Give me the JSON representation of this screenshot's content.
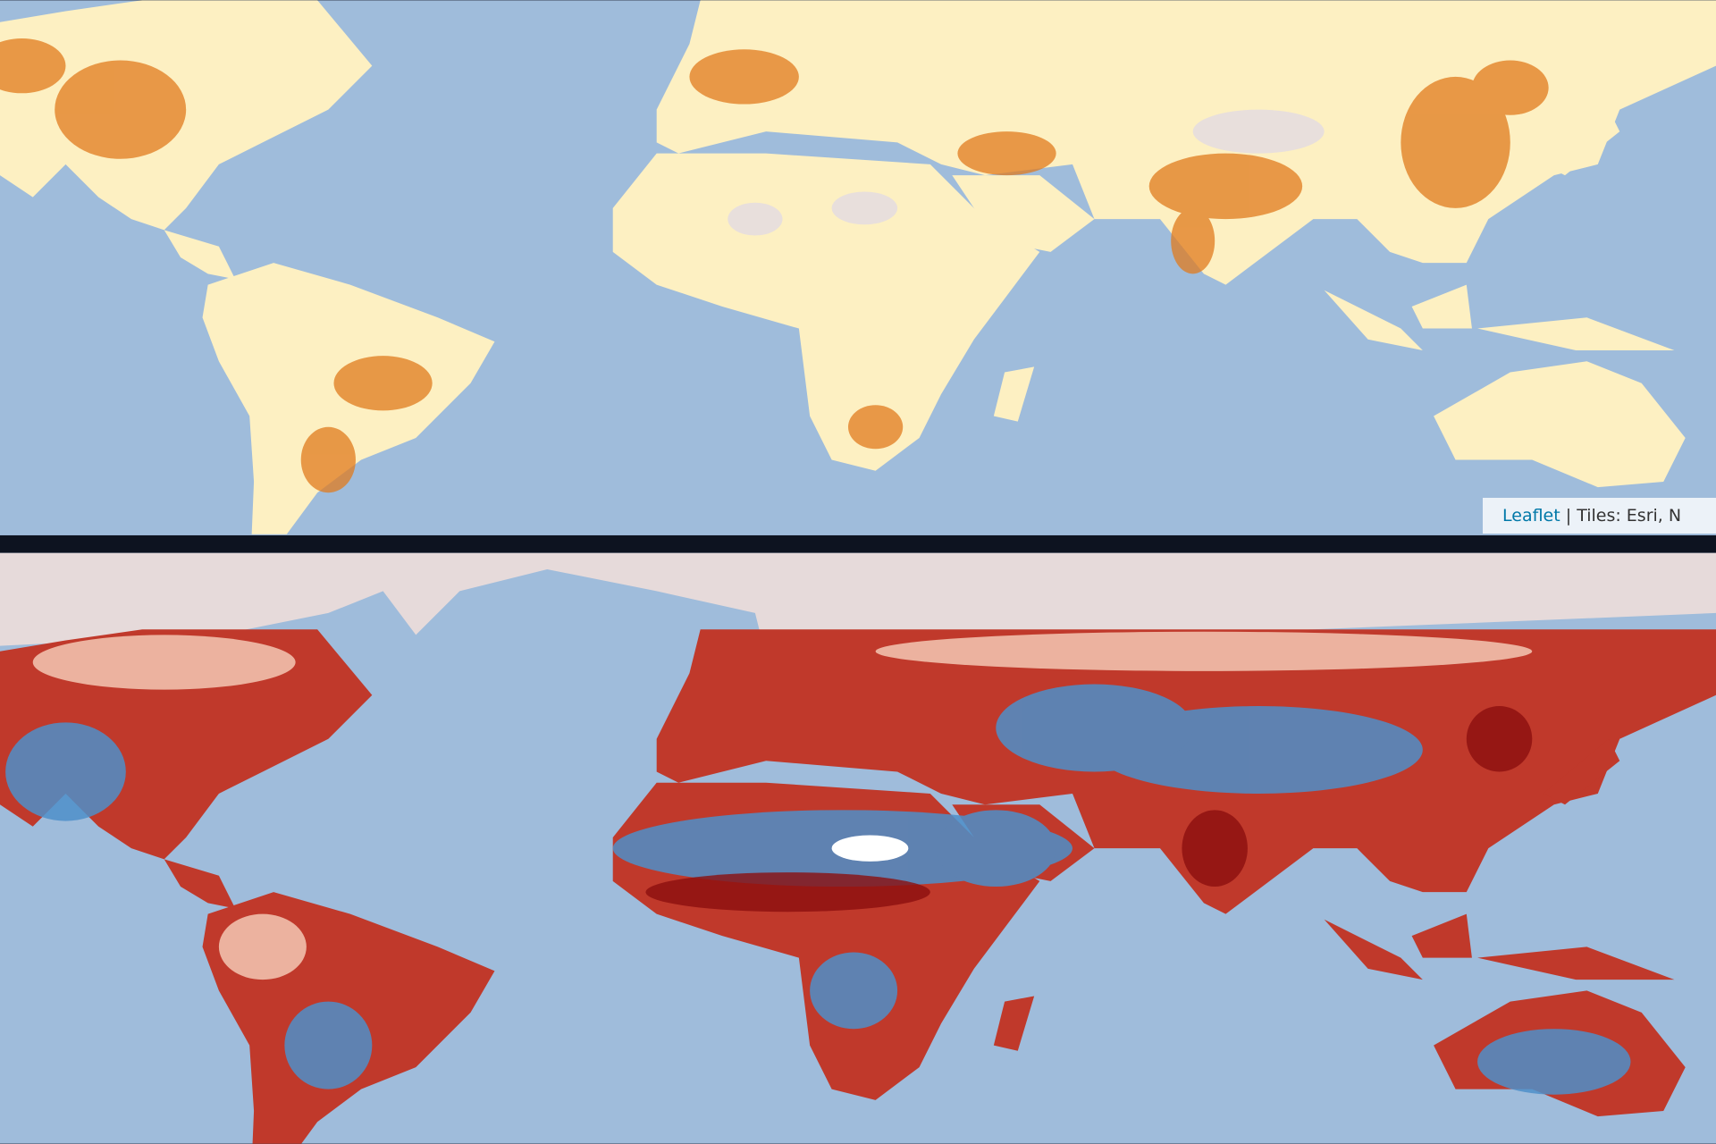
{
  "attribution": {
    "link": "Leaflet",
    "text": "| Tiles: Esri, N"
  }
}
